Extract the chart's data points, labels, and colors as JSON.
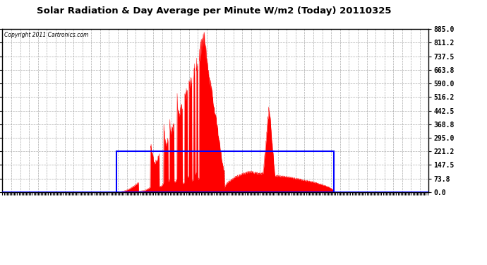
{
  "title": "Solar Radiation & Day Average per Minute W/m2 (Today) 20110325",
  "copyright": "Copyright 2011 Cartronics.com",
  "bg_color": "#ffffff",
  "plot_bg_color": "#ffffff",
  "bar_color": "#ff0000",
  "line_color": "#0000ff",
  "grid_color": "#888888",
  "ymin": 0.0,
  "ymax": 885.0,
  "yticks": [
    0.0,
    73.8,
    147.5,
    221.2,
    295.0,
    368.8,
    442.5,
    516.2,
    590.0,
    663.8,
    737.5,
    811.2,
    885.0
  ],
  "total_minutes": 1440,
  "sunrise_minute": 385,
  "sunset_minute": 1120,
  "day_avg": 221.2,
  "peak_minute": 680,
  "peak_value": 885.0,
  "figwidth": 6.9,
  "figheight": 3.75,
  "dpi": 100
}
